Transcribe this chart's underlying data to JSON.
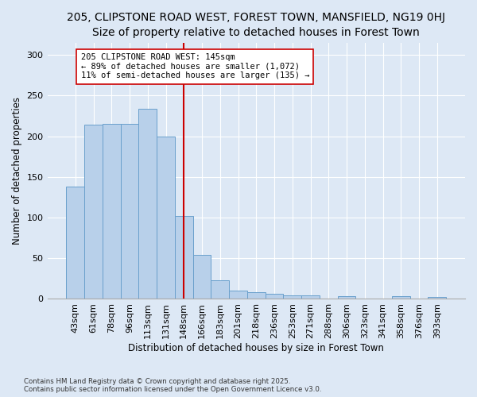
{
  "title1": "205, CLIPSTONE ROAD WEST, FOREST TOWN, MANSFIELD, NG19 0HJ",
  "title2": "Size of property relative to detached houses in Forest Town",
  "xlabel": "Distribution of detached houses by size in Forest Town",
  "ylabel": "Number of detached properties",
  "categories": [
    "43sqm",
    "61sqm",
    "78sqm",
    "96sqm",
    "113sqm",
    "131sqm",
    "148sqm",
    "166sqm",
    "183sqm",
    "201sqm",
    "218sqm",
    "236sqm",
    "253sqm",
    "271sqm",
    "288sqm",
    "306sqm",
    "323sqm",
    "341sqm",
    "358sqm",
    "376sqm",
    "393sqm"
  ],
  "values": [
    138,
    214,
    215,
    215,
    234,
    200,
    102,
    54,
    23,
    10,
    8,
    6,
    4,
    4,
    0,
    3,
    0,
    0,
    3,
    0,
    2
  ],
  "bar_color": "#b8d0ea",
  "bar_edge_color": "#6aa0cc",
  "vline_index": 6,
  "vline_color": "#cc0000",
  "annotation_text": "205 CLIPSTONE ROAD WEST: 145sqm\n← 89% of detached houses are smaller (1,072)\n11% of semi-detached houses are larger (135) →",
  "annotation_box_color": "#ffffff",
  "annotation_box_edge": "#cc0000",
  "ylim": [
    0,
    315
  ],
  "yticks": [
    0,
    50,
    100,
    150,
    200,
    250,
    300
  ],
  "title1_fontsize": 10,
  "title2_fontsize": 9,
  "xlabel_fontsize": 8.5,
  "ylabel_fontsize": 8.5,
  "tick_fontsize": 8,
  "ann_fontsize": 7.5,
  "footer1": "Contains HM Land Registry data © Crown copyright and database right 2025.",
  "footer2": "Contains public sector information licensed under the Open Government Licence v3.0.",
  "bg_color": "#dde8f5",
  "plot_bg_color": "#dde8f5",
  "grid_color": "#ffffff"
}
